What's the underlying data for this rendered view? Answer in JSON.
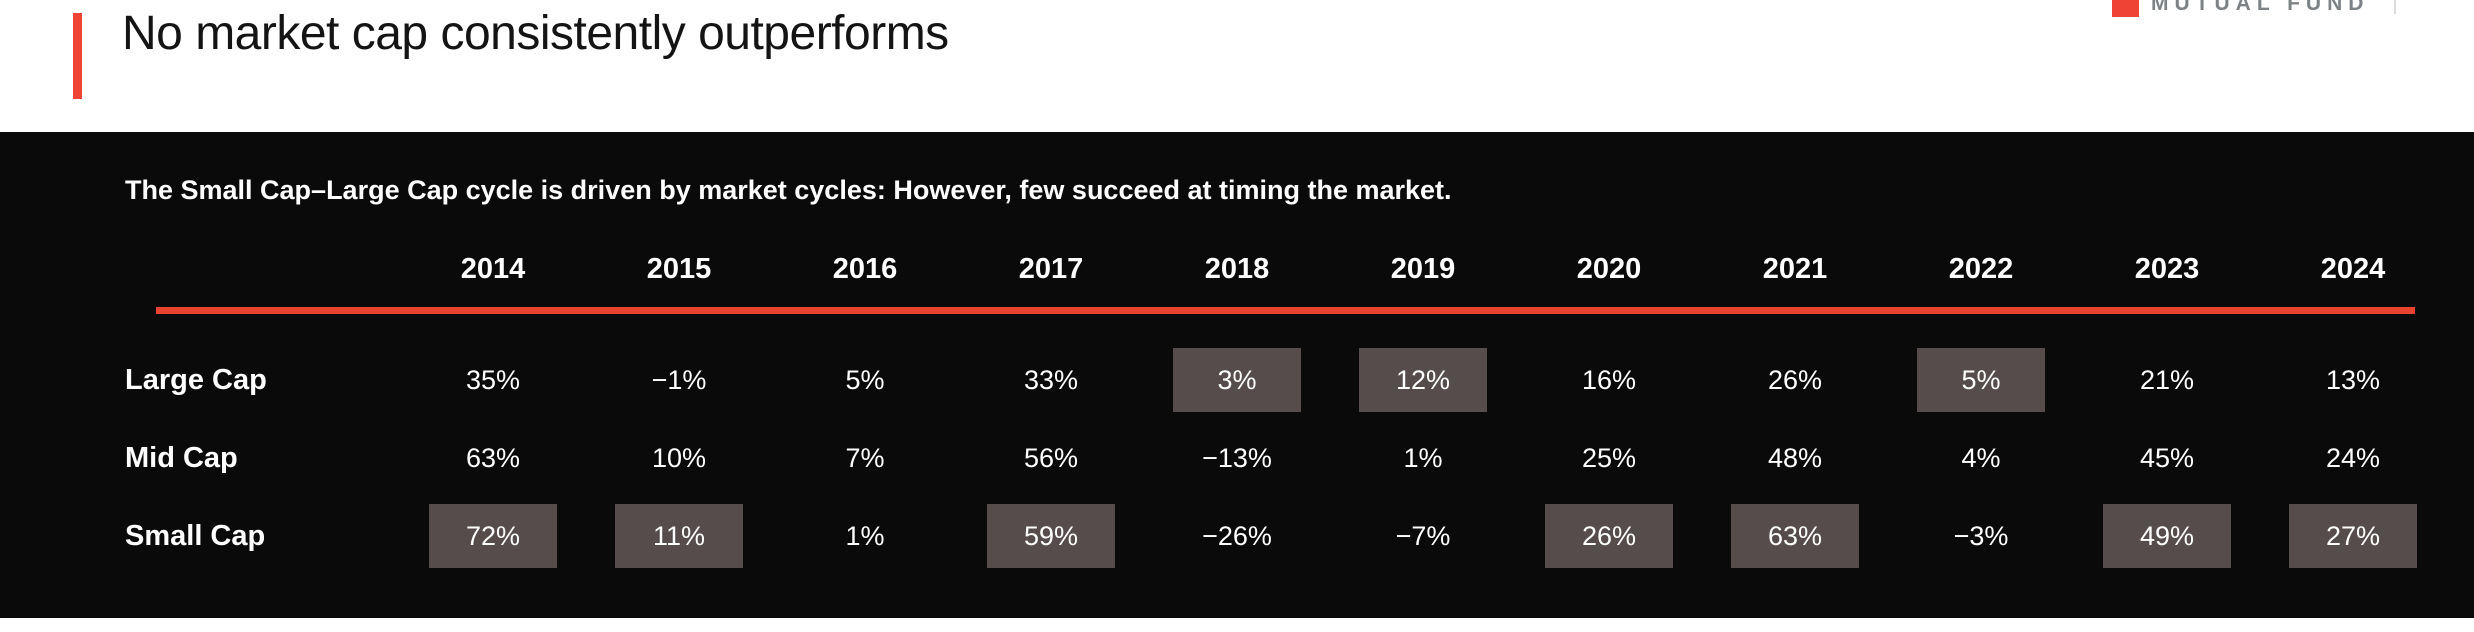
{
  "header": {
    "accent_color": "#ef4335",
    "title_color": "#141414"
  },
  "logo": {
    "text": "MUTUAL FUND",
    "mark_color": "#ef4335",
    "text_color": "#7d8287"
  },
  "panel": {
    "bg_color": "#0a0a0b",
    "rule_color": "#e8432f",
    "highlight_color": "#564c4c",
    "text_color": "#ffffff"
  },
  "chart_data": {
    "type": "table",
    "title": "No market cap consistently outperforms",
    "subtitle": "The Small Cap–Large Cap cycle is driven by market cycles: However, few succeed at timing the market.",
    "categories": [
      "2014",
      "2015",
      "2016",
      "2017",
      "2018",
      "2019",
      "2020",
      "2021",
      "2022",
      "2023",
      "2024"
    ],
    "series": [
      {
        "name": "Large Cap",
        "values": [
          "35%",
          "−1%",
          "5%",
          "33%",
          "3%",
          "12%",
          "16%",
          "26%",
          "5%",
          "21%",
          "13%"
        ],
        "values_numeric": [
          35,
          -1,
          5,
          33,
          3,
          12,
          16,
          26,
          5,
          21,
          13
        ],
        "highlighted": [
          false,
          false,
          false,
          false,
          true,
          true,
          false,
          false,
          true,
          false,
          false
        ]
      },
      {
        "name": "Mid Cap",
        "values": [
          "63%",
          "10%",
          "7%",
          "56%",
          "−13%",
          "1%",
          "25%",
          "48%",
          "4%",
          "45%",
          "24%"
        ],
        "values_numeric": [
          63,
          10,
          7,
          56,
          -13,
          1,
          25,
          48,
          4,
          45,
          24
        ],
        "highlighted": [
          false,
          false,
          false,
          false,
          false,
          false,
          false,
          false,
          false,
          false,
          false
        ]
      },
      {
        "name": "Small Cap",
        "values": [
          "72%",
          "11%",
          "1%",
          "59%",
          "−26%",
          "−7%",
          "26%",
          "63%",
          "−3%",
          "49%",
          "27%"
        ],
        "values_numeric": [
          72,
          11,
          1,
          59,
          -26,
          -7,
          26,
          63,
          -3,
          49,
          27
        ],
        "highlighted": [
          true,
          true,
          false,
          true,
          false,
          false,
          true,
          true,
          false,
          true,
          true
        ]
      }
    ],
    "legend": "none",
    "layout": "years as columns, market-cap segments as rows, yearly best-cycle cells highlighted"
  }
}
